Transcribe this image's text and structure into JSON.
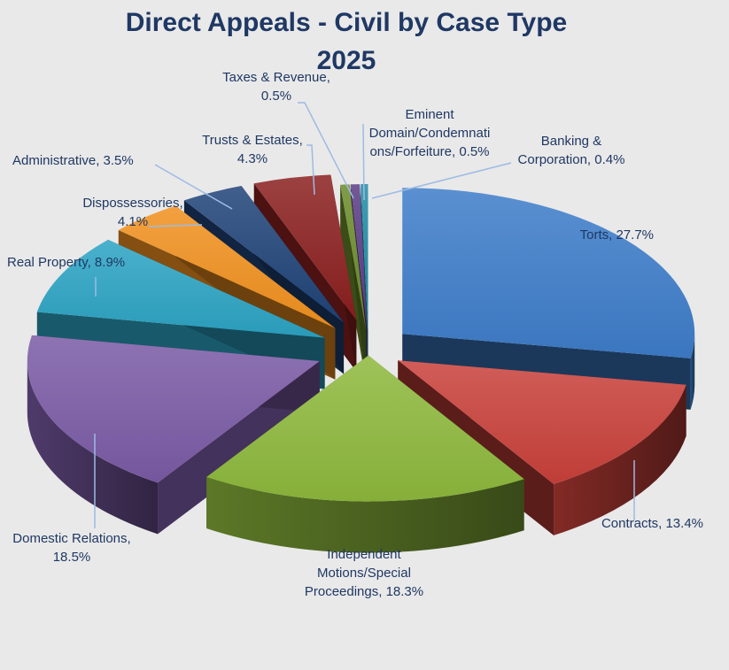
{
  "chart_data": {
    "type": "pie",
    "title_line1": "Direct Appeals - Civil by Case Type",
    "title_line2": "2025",
    "slices": [
      {
        "name": "Torts",
        "value": 27.7,
        "label_lines": [
          "Torts, 27.7%"
        ],
        "color": "#3d7cc9"
      },
      {
        "name": "Contracts",
        "value": 13.4,
        "label_lines": [
          "Contracts, 13.4%"
        ],
        "color": "#c9403a"
      },
      {
        "name": "Independent Motions/Special Proceedings",
        "value": 18.3,
        "label_lines": [
          "Independent",
          "Motions/Special",
          "Proceedings, 18.3%"
        ],
        "color": "#8db83c"
      },
      {
        "name": "Domestic Relations",
        "value": 18.5,
        "label_lines": [
          "Domestic Relations,",
          "18.5%"
        ],
        "color": "#7a5aa5"
      },
      {
        "name": "Real Property",
        "value": 8.9,
        "label_lines": [
          "Real Property, 8.9%"
        ],
        "color": "#2ba3c3"
      },
      {
        "name": "Dispossessories",
        "value": 4.1,
        "label_lines": [
          "Dispossessories,",
          "4.1%"
        ],
        "color": "#f0901e"
      },
      {
        "name": "Administrative",
        "value": 3.5,
        "label_lines": [
          "Administrative, 3.5%"
        ],
        "color": "#1f4378"
      },
      {
        "name": "Trusts & Estates",
        "value": 4.3,
        "label_lines": [
          "Trusts & Estates,",
          "4.3%"
        ],
        "color": "#8b1f1f"
      },
      {
        "name": "Taxes & Revenue",
        "value": 0.5,
        "label_lines": [
          "Taxes & Revenue,",
          "0.5%"
        ],
        "color": "#6a8a2a"
      },
      {
        "name": "Eminent Domain/Condemnations/Forfeiture",
        "value": 0.5,
        "label_lines": [
          "Eminent",
          "Domain/Condemnati",
          "ons/Forfeiture, 0.5%"
        ],
        "color": "#5a3b85"
      },
      {
        "name": "Banking & Corporation",
        "value": 0.4,
        "label_lines": [
          "Banking &",
          "Corporation, 0.4%"
        ],
        "color": "#1e8aa6"
      }
    ],
    "legend": "none",
    "style": "3d-exploded"
  }
}
